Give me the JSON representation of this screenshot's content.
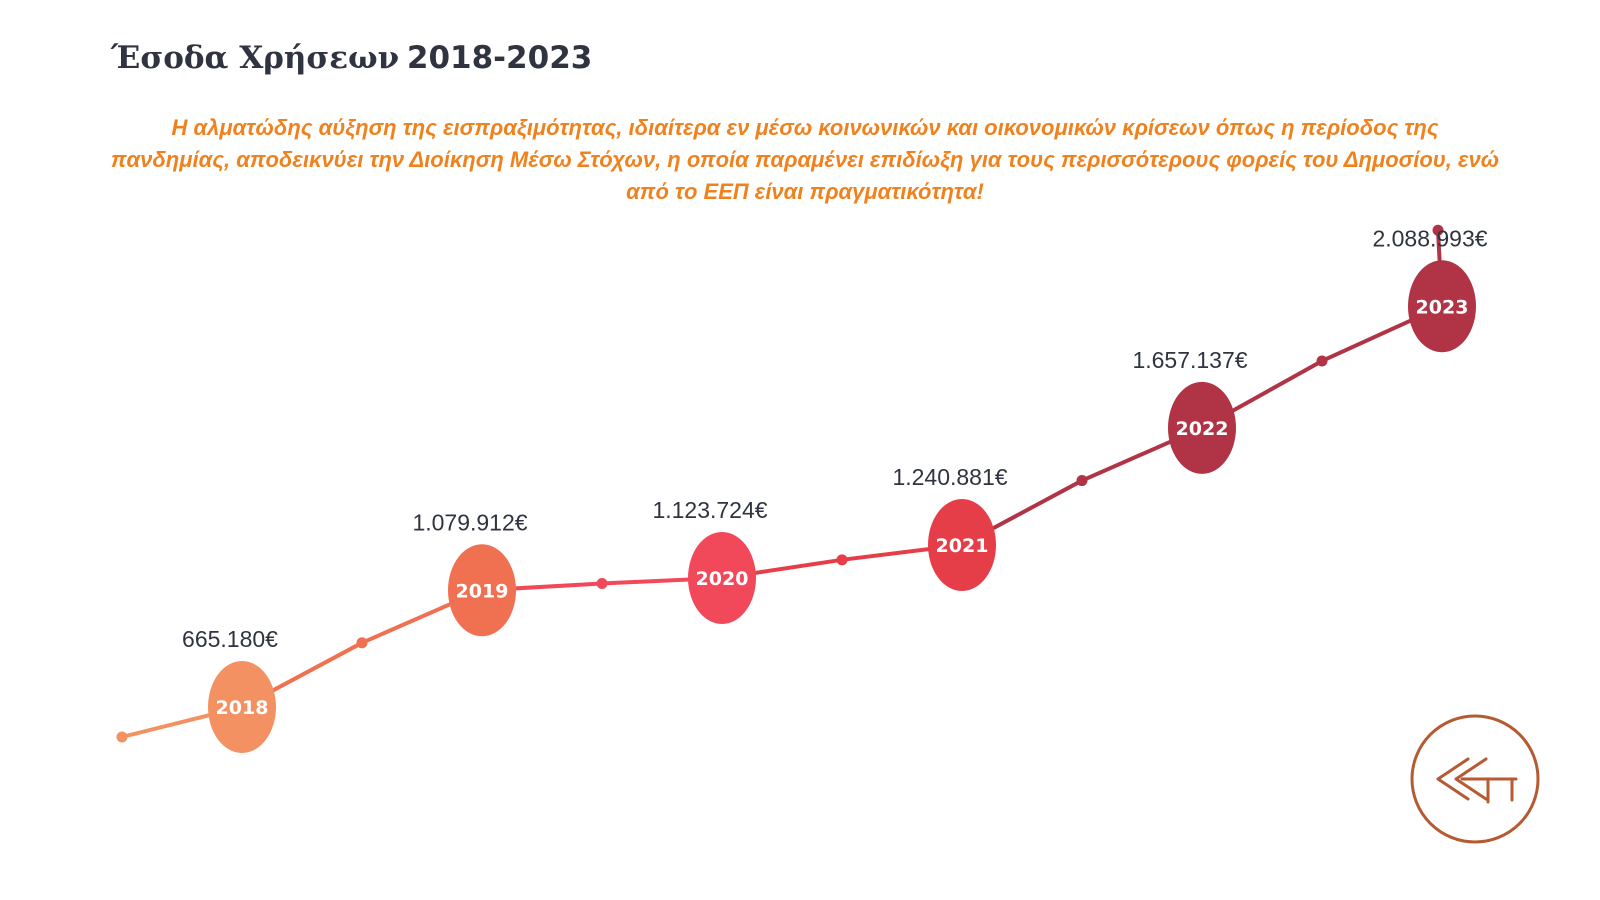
{
  "title": {
    "main": "Έσοδα Χρήσεων",
    "years": "2018-2023"
  },
  "subtitle": "Η αλματώδης αύξηση της εισπραξιμότητας, ιδιαίτερα εν μέσω κοινωνικών και οικονομικών κρίσεων όπως η περίοδος της πανδημίας, αποδεικνύει την Διοίκηση Μέσω Στόχων, η οποία παραμένει επιδίωξη για τους περισσότερους φορείς του Δημοσίου, ενώ από το ΕΕΠ είναι πραγματικότητα!",
  "colors": {
    "title": "#2f3440",
    "subtitle": "#f0821e",
    "logo": "#b55a32",
    "years": [
      "#f39163",
      "#f07052",
      "#f1495a",
      "#e63e49",
      "#b03446",
      "#b03446"
    ]
  },
  "logo_icon": "eep-logo-icon",
  "chart_data": {
    "type": "line",
    "title": "Έσοδα Χρήσεων 2018-2023",
    "categories": [
      "2018",
      "2019",
      "2020",
      "2021",
      "2022",
      "2023"
    ],
    "values": [
      665180,
      1079912,
      1123724,
      1240881,
      1657137,
      2088993
    ],
    "value_labels": [
      "665.180€",
      "1.079.912€",
      "1.123.724€",
      "1.240.881€",
      "1.657.137€",
      "2.088.993€"
    ],
    "xlabel": "",
    "ylabel": "",
    "grid": false,
    "legend": "none"
  }
}
